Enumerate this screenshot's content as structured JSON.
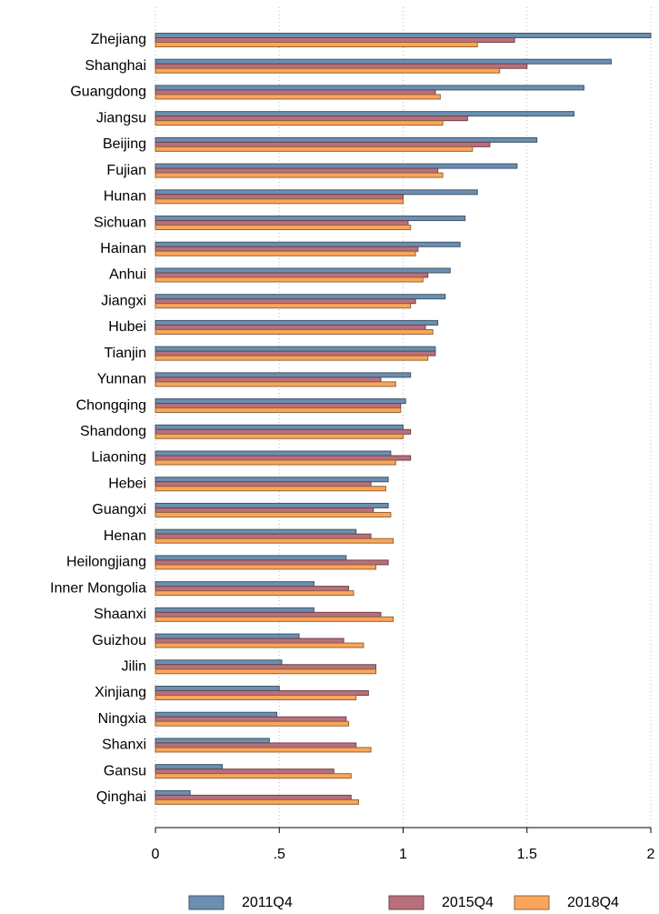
{
  "chart_data": {
    "type": "hbar",
    "categories": [
      "Zhejiang",
      "Shanghai",
      "Guangdong",
      "Jiangsu",
      "Beijing",
      "Fujian",
      "Hunan",
      "Sichuan",
      "Hainan",
      "Anhui",
      "Jiangxi",
      "Hubei",
      "Tianjin",
      "Yunnan",
      "Chongqing",
      "Shandong",
      "Liaoning",
      "Hebei",
      "Guangxi",
      "Henan",
      "Heilongjiang",
      "Inner Mongolia",
      "Shaanxi",
      "Guizhou",
      "Jilin",
      "Xinjiang",
      "Ningxia",
      "Shanxi",
      "Gansu",
      "Qinghai"
    ],
    "series": [
      {
        "name": "2011Q4",
        "color": "#6a8fb0",
        "values": [
          2.0,
          1.84,
          1.73,
          1.69,
          1.54,
          1.46,
          1.3,
          1.25,
          1.23,
          1.19,
          1.17,
          1.14,
          1.13,
          1.03,
          1.01,
          1.0,
          0.95,
          0.94,
          0.94,
          0.81,
          0.77,
          0.64,
          0.64,
          0.58,
          0.51,
          0.5,
          0.49,
          0.46,
          0.27,
          0.14
        ]
      },
      {
        "name": "2015Q4",
        "color": "#b8707c",
        "values": [
          1.45,
          1.5,
          1.13,
          1.26,
          1.35,
          1.14,
          1.0,
          1.02,
          1.06,
          1.1,
          1.05,
          1.09,
          1.13,
          0.91,
          0.99,
          1.03,
          1.03,
          0.87,
          0.88,
          0.87,
          0.94,
          0.78,
          0.91,
          0.76,
          0.89,
          0.86,
          0.77,
          0.81,
          0.72,
          0.79
        ]
      },
      {
        "name": "2018Q4",
        "color": "#f9a65a",
        "values": [
          1.3,
          1.39,
          1.15,
          1.16,
          1.28,
          1.16,
          1.0,
          1.03,
          1.05,
          1.08,
          1.03,
          1.12,
          1.1,
          0.97,
          0.99,
          1.0,
          0.97,
          0.93,
          0.95,
          0.96,
          0.89,
          0.8,
          0.96,
          0.84,
          0.89,
          0.81,
          0.78,
          0.87,
          0.79,
          0.82
        ]
      }
    ],
    "xlim": [
      0,
      2
    ],
    "xticks": [
      0,
      {
        "value": 0.5,
        "label": ".5"
      },
      1,
      1.5,
      2
    ],
    "grid": true
  }
}
